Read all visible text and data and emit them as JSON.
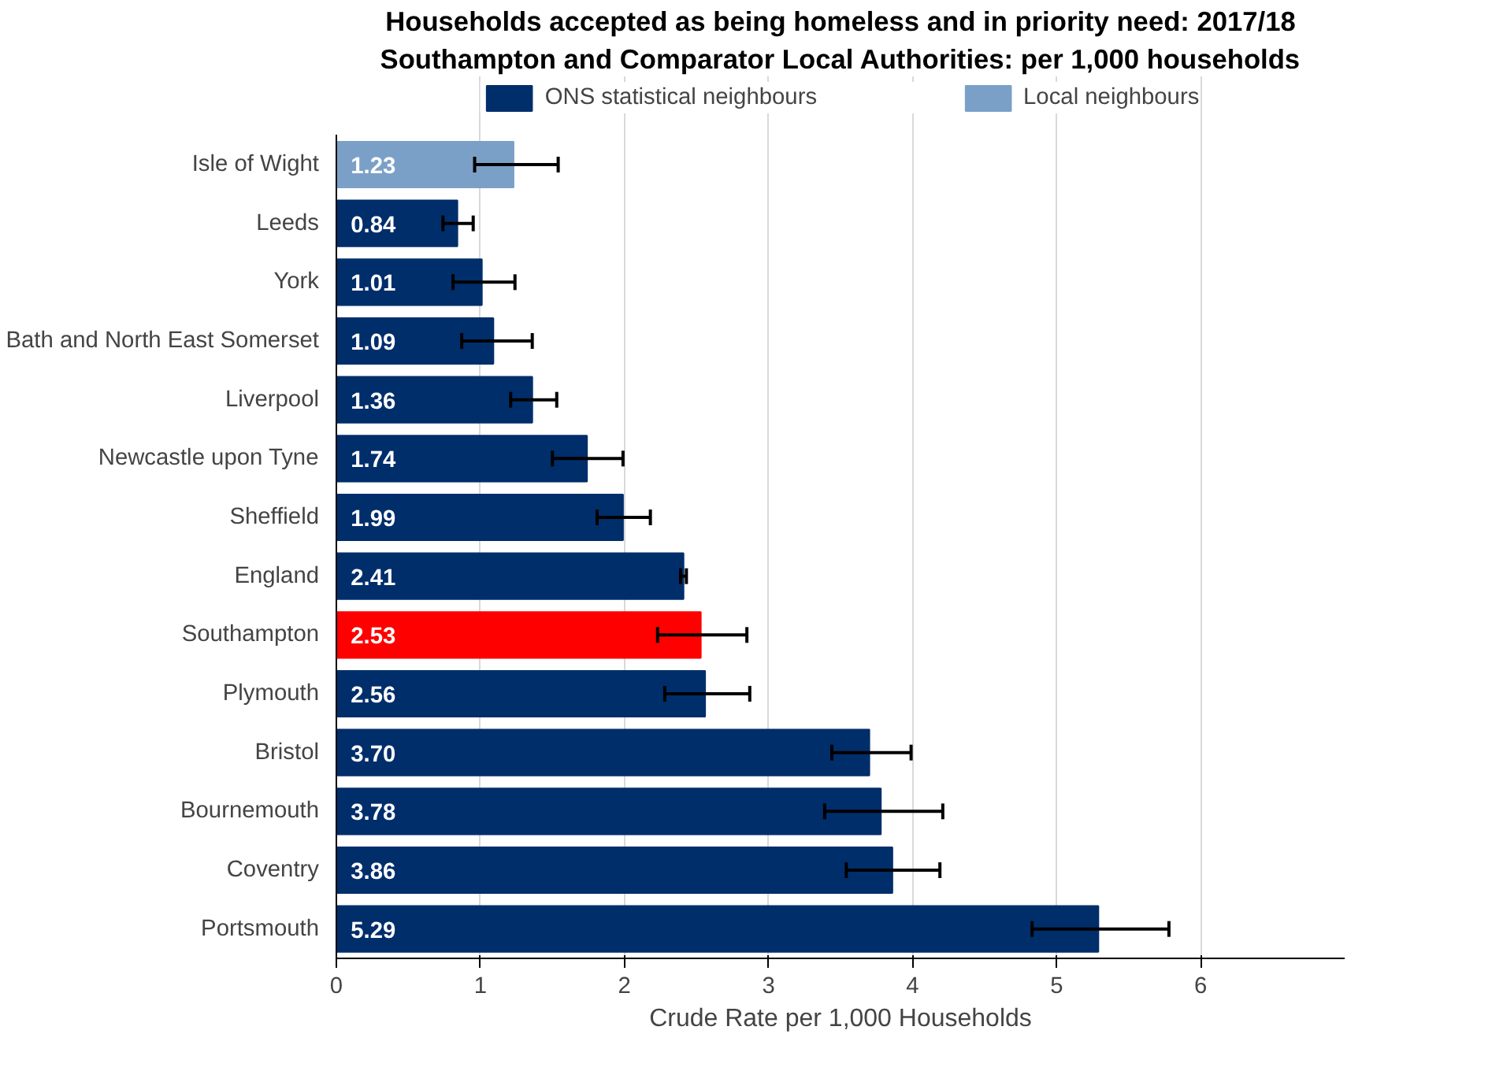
{
  "chart_data": {
    "type": "bar",
    "orientation": "horizontal",
    "title": "Households accepted as being homeless and in priority need: 2017/18",
    "subtitle": "Southampton and Comparator Local Authorities: per 1,000 households",
    "xlabel": "Crude Rate per 1,000 Households",
    "categories": [
      "Isle of Wight",
      "Leeds",
      "York",
      "Bath and North East Somerset",
      "Liverpool",
      "Newcastle upon Tyne",
      "Sheffield",
      "England",
      "Southampton",
      "Plymouth",
      "Bristol",
      "Bournemouth",
      "Coventry",
      "Portsmouth"
    ],
    "series": [
      {
        "name": "ONS statistical neighbours",
        "color": "#002e6b",
        "colors": [
          "#002e6b",
          "#002e6b",
          "#002e6b",
          "#002e6b",
          "#002e6b",
          "#002e6b",
          "#002e6b",
          "#002e6b",
          "#ff0000",
          "#002e6b",
          "#002e6b",
          "#002e6b",
          "#002e6b",
          "#002e6b"
        ],
        "values": [
          null,
          0.84,
          1.01,
          1.09,
          1.36,
          1.74,
          1.99,
          2.41,
          2.53,
          2.56,
          3.7,
          3.78,
          3.86,
          5.29
        ],
        "value_labels": [
          null,
          "0.84",
          "1.01",
          "1.09",
          "1.36",
          "1.74",
          "1.99",
          "2.41",
          "2.53",
          "2.56",
          "3.70",
          "3.78",
          "3.86",
          "5.29"
        ],
        "errors": [
          null,
          [
            0.74,
            0.95
          ],
          [
            0.81,
            1.24
          ],
          [
            0.87,
            1.36
          ],
          [
            1.21,
            1.53
          ],
          [
            1.5,
            1.99
          ],
          [
            1.81,
            2.18
          ],
          [
            2.39,
            2.43
          ],
          [
            2.23,
            2.85
          ],
          [
            2.28,
            2.87
          ],
          [
            3.44,
            3.99
          ],
          [
            3.39,
            4.21
          ],
          [
            3.54,
            4.19
          ],
          [
            4.83,
            5.78
          ]
        ]
      },
      {
        "name": "Local neighbours",
        "color": "#7ba0c8",
        "values": [
          1.23,
          null,
          null,
          null,
          null,
          null,
          null,
          null,
          null,
          null,
          null,
          null,
          null,
          null
        ],
        "value_labels": [
          "1.23",
          null,
          null,
          null,
          null,
          null,
          null,
          null,
          null,
          null,
          null,
          null,
          null,
          null
        ],
        "errors": [
          [
            0.96,
            1.54
          ],
          null,
          null,
          null,
          null,
          null,
          null,
          null,
          null,
          null,
          null,
          null,
          null,
          null
        ]
      }
    ],
    "xlim": [
      0,
      7
    ],
    "xticks": [
      0,
      1,
      2,
      3,
      4,
      5,
      6
    ],
    "grid": "x",
    "legend": "top"
  }
}
